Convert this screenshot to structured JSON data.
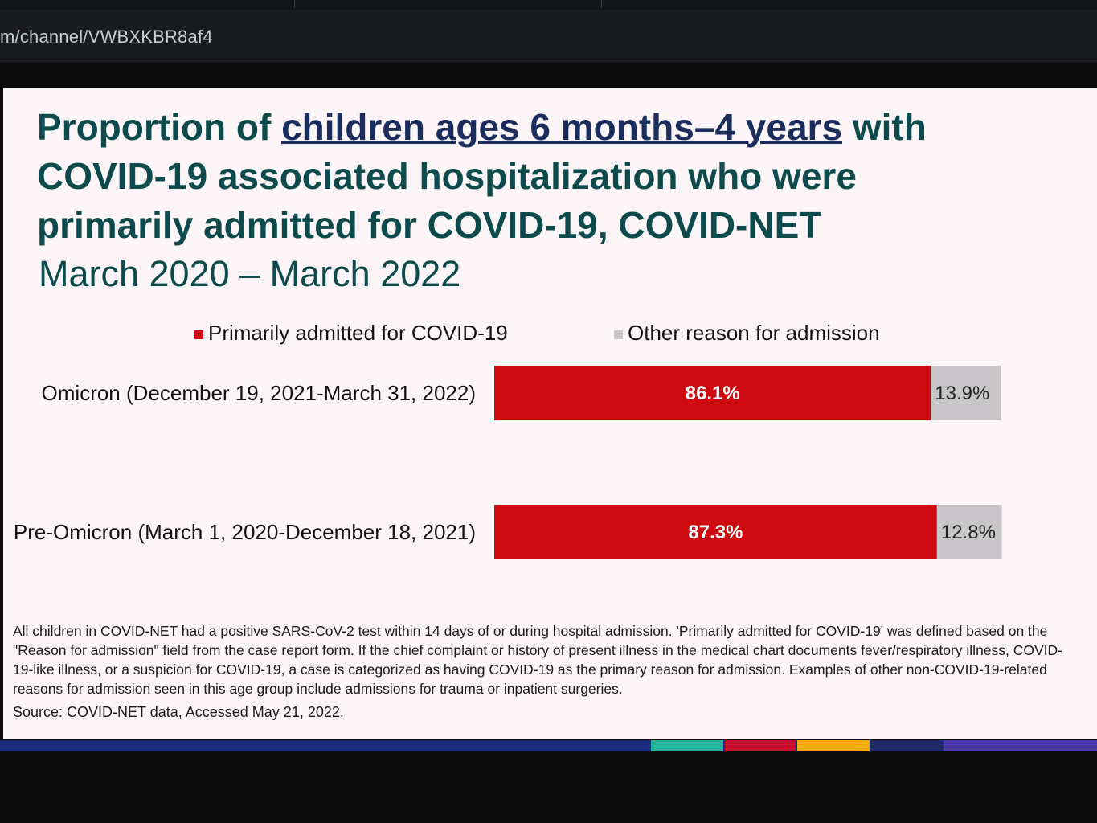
{
  "browser": {
    "url": "m/channel/VWBXKBR8af4"
  },
  "slide": {
    "title_prefix": "Proportion of ",
    "title_underlined": "children ages 6 months–4 years",
    "title_suffix": " with",
    "title_line2": "COVID-19 associated hospitalization who were",
    "title_line3": "primarily admitted for COVID-19, COVID-NET",
    "subtitle": "March 2020 – March 2022",
    "footnote": "All children in COVID-NET had a positive SARS-CoV-2 test within 14 days of or during hospital admission. 'Primarily admitted for COVID-19' was defined based on the \"Reason for admission\" field from the case report form. If the chief complaint or history of present illness in the medical chart documents fever/respiratory illness, COVID-19-like illness, or a suspicion for COVID-19, a case is categorized as having COVID-19 as the primary reason for admission. Examples of other non-COVID-19-related reasons for admission seen in this age group include admissions for trauma or inpatient surgeries.",
    "source": "Source: COVID-NET data, Accessed May 21, 2022."
  },
  "chart_data": {
    "type": "bar",
    "orientation": "horizontal",
    "stacked": true,
    "categories": [
      "Omicron (December 19, 2021-March 31, 2022)",
      "Pre-Omicron (March 1, 2020-December 18, 2021)"
    ],
    "series": [
      {
        "name": "Primarily admitted for COVID-19",
        "values": [
          86.1,
          87.3
        ],
        "labels": [
          "86.1%",
          "87.3%"
        ],
        "color": "#cc0a0f"
      },
      {
        "name": "Other reason for admission",
        "values": [
          13.9,
          12.8
        ],
        "labels": [
          "13.9%",
          "12.8%"
        ],
        "color": "#c8c6c8"
      }
    ],
    "xlim": [
      0,
      100
    ],
    "legend_position": "top",
    "grid": false
  },
  "colors": {
    "title": "#0c4a4c",
    "title_underline": "#1a2d5c",
    "bottom_bar": "#1b2d7c",
    "accent_teal": "#27b39a",
    "accent_red": "#c8102e",
    "accent_yellow": "#f2a900",
    "accent_navy": "#222a6a",
    "accent_purple": "#4a3aa8"
  }
}
